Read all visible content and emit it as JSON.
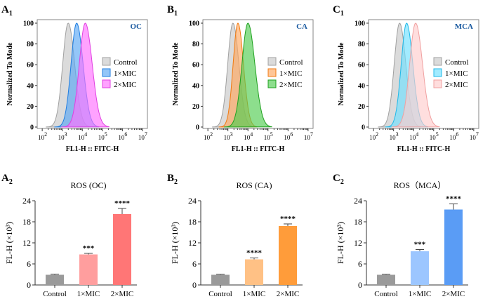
{
  "chart_data": [
    {
      "panel": "A1",
      "type": "area",
      "label_main": "A",
      "label_sub": "1",
      "sample": "OC",
      "ylabel": "Normalized To Mode",
      "xlabel": "FL1-H :: FITC-H",
      "yticks": [
        0,
        20,
        40,
        60,
        80,
        100
      ],
      "xtick_exponents": [
        2,
        3,
        4,
        5,
        6,
        7
      ],
      "xscale": "log10",
      "series": [
        {
          "name": "Control",
          "peak_log10": 3.3,
          "sd_log10": 0.28,
          "fill": "#c8c8c8",
          "stroke": "#a0a0a0"
        },
        {
          "name": "1×MIC",
          "peak_log10": 3.72,
          "sd_log10": 0.28,
          "fill": "#5aa8f5",
          "stroke": "#1f7de0"
        },
        {
          "name": "2×MIC",
          "peak_log10": 4.15,
          "sd_log10": 0.3,
          "fill": "#ff70ff",
          "stroke": "#e040e0"
        }
      ]
    },
    {
      "panel": "B1",
      "type": "area",
      "label_main": "B",
      "label_sub": "1",
      "sample": "CA",
      "ylabel": "Normalized To Mode",
      "xlabel": "FL1-H :: FITC-H",
      "yticks": [
        0,
        20,
        40,
        60,
        80,
        100
      ],
      "xtick_exponents": [
        2,
        3,
        4,
        5,
        6,
        7
      ],
      "xscale": "log10",
      "series": [
        {
          "name": "Control",
          "peak_log10": 3.25,
          "sd_log10": 0.26,
          "fill": "#c8c8c8",
          "stroke": "#a0a0a0"
        },
        {
          "name": "1×MIC",
          "peak_log10": 3.5,
          "sd_log10": 0.24,
          "fill": "#ffa860",
          "stroke": "#f07a10"
        },
        {
          "name": "2×MIC",
          "peak_log10": 4.0,
          "sd_log10": 0.3,
          "fill": "#50cc50",
          "stroke": "#20a020"
        }
      ]
    },
    {
      "panel": "C1",
      "type": "area",
      "label_main": "C",
      "label_sub": "1",
      "sample": "MCA",
      "ylabel": "Normalized To Mode",
      "xlabel": "FL1-H :: FITC-H",
      "yticks": [
        0,
        20,
        40,
        60,
        80,
        100
      ],
      "xtick_exponents": [
        2,
        3,
        4,
        5,
        6,
        7
      ],
      "xscale": "log10",
      "series": [
        {
          "name": "Control",
          "peak_log10": 3.3,
          "sd_log10": 0.27,
          "fill": "#c8c8c8",
          "stroke": "#a0a0a0"
        },
        {
          "name": "1×MIC",
          "peak_log10": 3.65,
          "sd_log10": 0.27,
          "fill": "#70e0ff",
          "stroke": "#20b8e8"
        },
        {
          "name": "2×MIC",
          "peak_log10": 4.1,
          "sd_log10": 0.3,
          "fill": "#ffcccc",
          "stroke": "#f0a0a0"
        }
      ]
    },
    {
      "panel": "A2",
      "type": "bar",
      "label_main": "A",
      "label_sub": "2",
      "title": "ROS (OC)",
      "ylabel": "FL-H (×10³)",
      "ylim": [
        0,
        24
      ],
      "yticks": [
        0,
        6,
        12,
        18,
        24
      ],
      "categories": [
        "Control",
        "1×MIC",
        "2×MIC"
      ],
      "values": [
        2.9,
        8.7,
        20.2
      ],
      "errors": [
        0.2,
        0.3,
        1.6
      ],
      "significance": [
        "",
        "***",
        "****"
      ],
      "colors": [
        "#9a9a9a",
        "#ff9e9e",
        "#ff7676"
      ]
    },
    {
      "panel": "B2",
      "type": "bar",
      "label_main": "B",
      "label_sub": "2",
      "title": "ROS (CA)",
      "ylabel": "FL-H (×10³)",
      "ylim": [
        0,
        24
      ],
      "yticks": [
        0,
        6,
        12,
        18,
        24
      ],
      "categories": [
        "Control",
        "1×MIC",
        "2×MIC"
      ],
      "values": [
        2.9,
        7.3,
        16.8
      ],
      "errors": [
        0.15,
        0.4,
        0.6
      ],
      "significance": [
        "",
        "****",
        "****"
      ],
      "colors": [
        "#9a9a9a",
        "#ffc185",
        "#ff9c3a"
      ]
    },
    {
      "panel": "C2",
      "type": "bar",
      "label_main": "C",
      "label_sub": "2",
      "title": "ROS（MCA）",
      "ylabel": "FL-H (×10³)",
      "ylim": [
        0,
        24
      ],
      "yticks": [
        0,
        6,
        12,
        18,
        24
      ],
      "categories": [
        "Control",
        "1×MIC",
        "2×MIC"
      ],
      "values": [
        2.9,
        9.6,
        21.5
      ],
      "errors": [
        0.15,
        0.5,
        1.6
      ],
      "significance": [
        "",
        "***",
        "****"
      ],
      "colors": [
        "#9a9a9a",
        "#9cc6ff",
        "#5a9cf5"
      ]
    }
  ]
}
